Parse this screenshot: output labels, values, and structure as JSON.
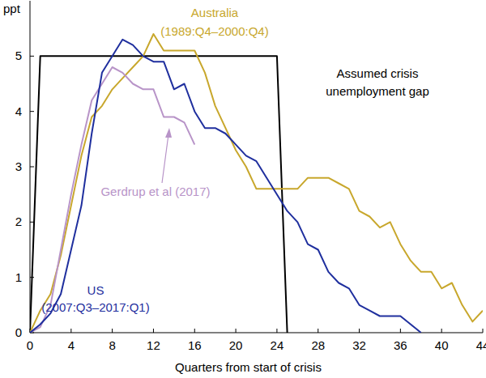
{
  "chart_data": {
    "type": "line",
    "ylabel": "ppt",
    "xlabel": "Quarters from start of crisis",
    "xlim": [
      0,
      44
    ],
    "xticks": [
      0,
      4,
      8,
      12,
      16,
      20,
      24,
      28,
      32,
      36,
      40,
      44
    ],
    "ylim": [
      0,
      6
    ],
    "yticks": [
      0,
      1,
      2,
      3,
      4,
      5
    ],
    "grid": false,
    "series": [
      {
        "name": "Australia",
        "color": "#c8a72c",
        "x": [
          0,
          1,
          2,
          3,
          4,
          5,
          6,
          7,
          8,
          9,
          10,
          11,
          12,
          13,
          14,
          15,
          16,
          17,
          18,
          19,
          20,
          21,
          22,
          23,
          24,
          25,
          26,
          27,
          28,
          29,
          30,
          31,
          32,
          33,
          34,
          35,
          36,
          37,
          38,
          39,
          40,
          41,
          42,
          43,
          44
        ],
        "values": [
          0,
          0.4,
          0.7,
          1.4,
          2.3,
          3.2,
          3.9,
          4.1,
          4.4,
          4.6,
          4.8,
          5.0,
          5.4,
          5.1,
          5.1,
          5.1,
          5.1,
          4.7,
          4.1,
          3.7,
          3.3,
          3.0,
          2.6,
          2.6,
          2.6,
          2.6,
          2.6,
          2.8,
          2.8,
          2.8,
          2.7,
          2.6,
          2.2,
          2.1,
          1.9,
          2.0,
          1.6,
          1.3,
          1.1,
          1.1,
          0.8,
          0.9,
          0.5,
          0.2,
          0.4
        ]
      },
      {
        "name": "US",
        "color": "#1f2f9e",
        "x": [
          0,
          1,
          2,
          3,
          4,
          5,
          6,
          7,
          8,
          9,
          10,
          11,
          12,
          13,
          14,
          15,
          16,
          17,
          18,
          19,
          20,
          21,
          22,
          23,
          24,
          25,
          26,
          27,
          28,
          29,
          30,
          31,
          32,
          33,
          34,
          35,
          36,
          37,
          38
        ],
        "values": [
          0,
          0.15,
          0.35,
          0.7,
          1.5,
          2.3,
          3.6,
          4.7,
          5.0,
          5.3,
          5.2,
          5.0,
          4.9,
          4.9,
          4.4,
          4.5,
          4.0,
          3.7,
          3.7,
          3.6,
          3.4,
          3.2,
          3.1,
          2.8,
          2.5,
          2.2,
          2.0,
          1.6,
          1.5,
          1.1,
          0.9,
          0.8,
          0.5,
          0.4,
          0.3,
          0.3,
          0.3,
          0.15,
          0
        ]
      },
      {
        "name": "Gerdrup et al (2017)",
        "color": "#b894c8",
        "x": [
          0,
          1,
          2,
          3,
          4,
          5,
          6,
          7,
          8,
          9,
          10,
          11,
          12,
          13,
          14,
          15,
          16
        ],
        "values": [
          0,
          0.1,
          0.5,
          1.5,
          2.5,
          3.4,
          4.2,
          4.5,
          4.8,
          4.7,
          4.5,
          4.4,
          4.4,
          3.9,
          3.9,
          3.8,
          3.4
        ]
      },
      {
        "name": "Assumed crisis unemployment gap",
        "color": "#000000",
        "x": [
          0,
          1,
          24,
          25
        ],
        "values": [
          0,
          5,
          5,
          0
        ]
      }
    ],
    "annotations": [
      "(1989:Q4–2000:Q4)",
      "(2007:Q3–2017:Q1)"
    ]
  }
}
